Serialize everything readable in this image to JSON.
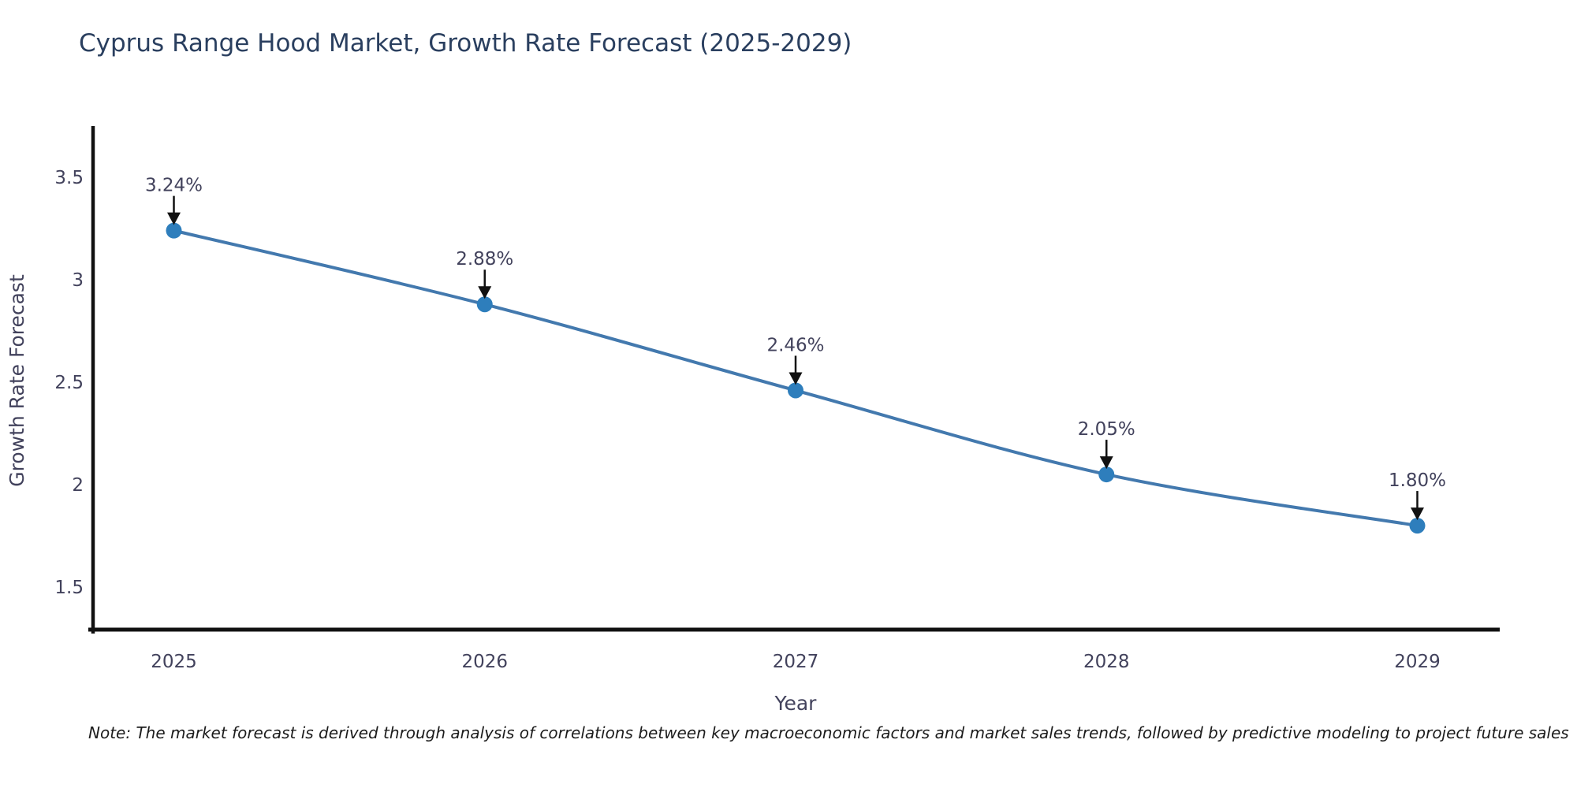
{
  "chart_data": {
    "type": "line",
    "title": "Cyprus Range Hood Market, Growth Rate Forecast (2025-2029)",
    "xlabel": "Year",
    "ylabel": "Growth Rate Forecast",
    "x": [
      2025,
      2026,
      2027,
      2028,
      2029
    ],
    "series": [
      {
        "name": "Growth Rate Forecast",
        "values": [
          3.24,
          2.88,
          2.46,
          2.05,
          1.8
        ]
      }
    ],
    "point_labels": [
      "3.24%",
      "2.88%",
      "2.46%",
      "2.05%",
      "1.80%"
    ],
    "x_tick_labels": [
      "2025",
      "2026",
      "2027",
      "2028",
      "2029"
    ],
    "y_ticks": [
      1.5,
      2,
      2.5,
      3,
      3.5
    ],
    "y_tick_labels": [
      "1.5",
      "2",
      "2.5",
      "3",
      "3.5"
    ],
    "xlim": [
      2024.74,
      2029.26
    ],
    "ylim": [
      1.285,
      3.75
    ],
    "grid": false,
    "legend_position": "none",
    "line_shape": "spline",
    "colors": {
      "line": "#4379ae",
      "marker": "#2e7ebc",
      "annotation_text": "#42425c",
      "annotation_arrow": "#111111",
      "axis_line": "#111111",
      "tick_text": "#42425c",
      "axis_title_text": "#42425c",
      "title_text": "#2a3f5f",
      "background": "#ffffff"
    }
  },
  "note": "Note: The market forecast is derived through analysis of correlations between key macroeconomic factors and market sales trends, followed by predictive modeling to project future sales"
}
